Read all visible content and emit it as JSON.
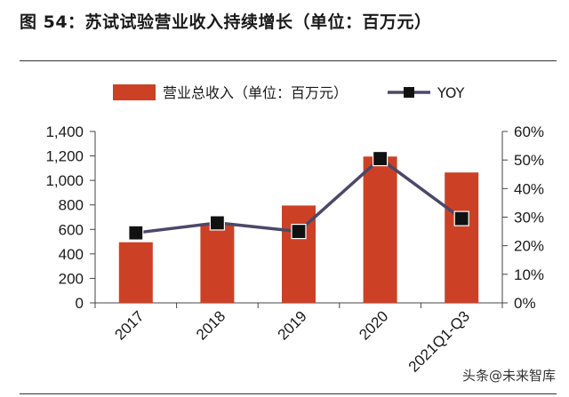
{
  "figure_title": "图 54：苏试试验营业收入持续增长（单位：百万元）",
  "watermark": "头条@未来智库",
  "colors": {
    "bar": "#cc4125",
    "line": "#4b4869",
    "marker": "#111111",
    "axis": "#444444"
  },
  "chart_data": {
    "type": "bar+line",
    "categories": [
      "2017",
      "2018",
      "2019",
      "2020",
      "2021Q1-Q3"
    ],
    "series": [
      {
        "name": "营业总收入（单位：百万元）",
        "type": "bar",
        "axis": "left",
        "values": [
          495,
          650,
          795,
          1195,
          1065
        ]
      },
      {
        "name": "YOY",
        "type": "line",
        "axis": "right",
        "values": [
          24.5,
          28,
          25,
          50.5,
          29.5
        ]
      }
    ],
    "y_left": {
      "min": 0,
      "max": 1400,
      "step": 200,
      "tick_labels": [
        "0",
        "200",
        "400",
        "600",
        "800",
        "1,000",
        "1,200",
        "1,400"
      ]
    },
    "y_right": {
      "min": 0,
      "max": 60,
      "step": 10,
      "tick_labels": [
        "0%",
        "10%",
        "20%",
        "30%",
        "40%",
        "50%",
        "60%"
      ]
    },
    "legend": {
      "position": "top"
    }
  }
}
